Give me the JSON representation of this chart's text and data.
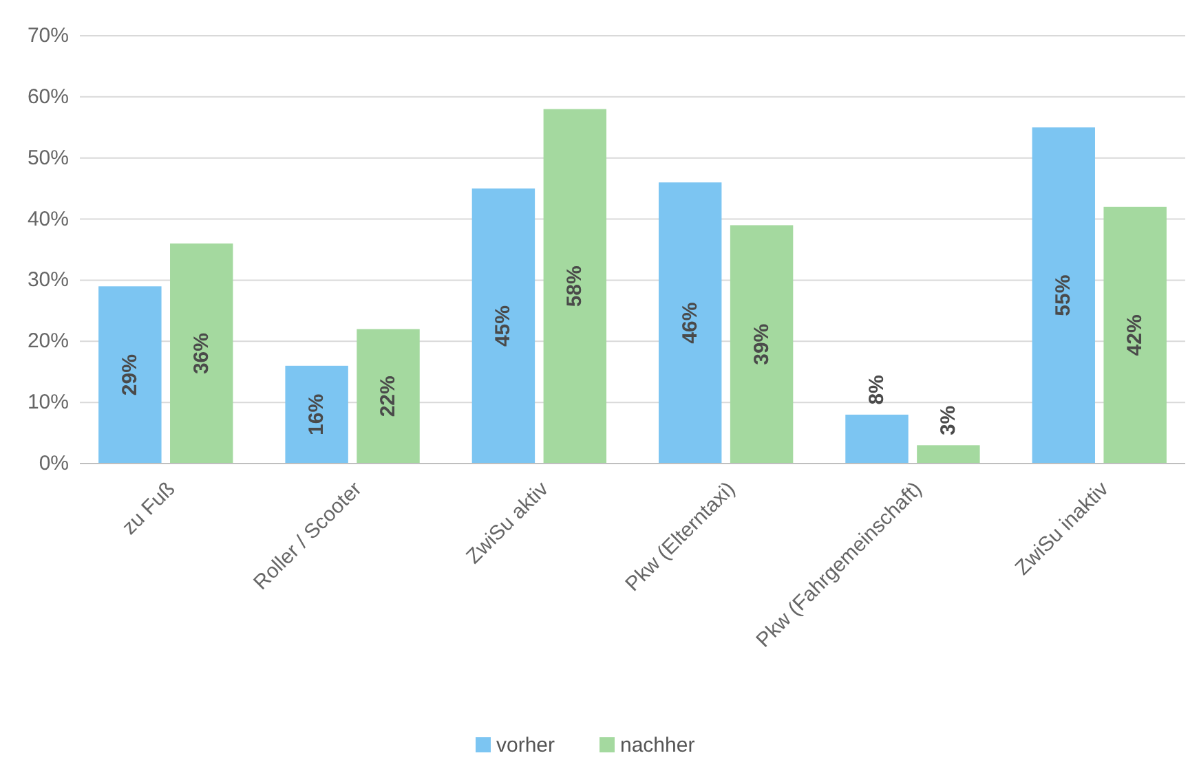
{
  "chart_data": {
    "type": "bar",
    "categories": [
      "zu Fuß",
      "Roller / Scooter",
      "ZwiSu aktiv",
      "Pkw (Elterntaxi)",
      "Pkw (Fahrgemeinschaft)",
      "ZwiSu inaktiv"
    ],
    "series": [
      {
        "name": "vorher",
        "color": "#7cc5f2",
        "values": [
          29,
          16,
          45,
          46,
          8,
          55
        ]
      },
      {
        "name": "nachher",
        "color": "#a4d99f",
        "values": [
          36,
          22,
          58,
          39,
          3,
          42
        ]
      }
    ],
    "ylim": [
      0,
      70
    ],
    "yticks": [
      {
        "value": 0,
        "label": "0%"
      },
      {
        "value": 10,
        "label": "10%"
      },
      {
        "value": 20,
        "label": "20%"
      },
      {
        "value": 30,
        "label": "30%"
      },
      {
        "value": 40,
        "label": "40%"
      },
      {
        "value": 50,
        "label": "50%"
      },
      {
        "value": 60,
        "label": "60%"
      },
      {
        "value": 70,
        "label": "70%"
      }
    ],
    "value_labels": [
      [
        "29%",
        "16%",
        "45%",
        "46%",
        "8%",
        "55%"
      ],
      [
        "36%",
        "22%",
        "58%",
        "39%",
        "3%",
        "42%"
      ]
    ],
    "grid": "y",
    "legend": "bottom"
  }
}
